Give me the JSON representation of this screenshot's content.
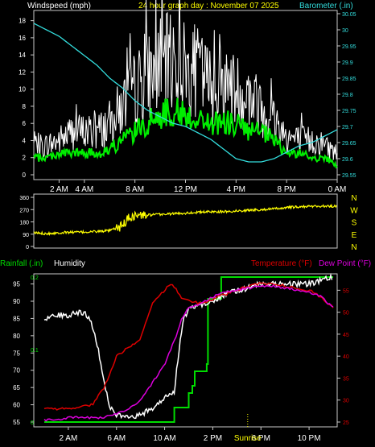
{
  "header": {
    "left_label": "Windspeed (mph)",
    "title": "24 hour graph day : November 07 2025",
    "right_label": "Barometer (.in)"
  },
  "colors": {
    "background": "#000000",
    "frame": "#c8c8c8",
    "title": "#ffff00",
    "label": "#ffffff",
    "baro": "#33dddd",
    "wind_gust": "#ffffff",
    "wind_avg": "#00ee00",
    "wind_dir": "#ffff00",
    "rain": "#00dd00",
    "humidity": "#ffffff",
    "temperature": "#dd0000",
    "dew_point": "#dd00dd",
    "sunrise": "#ffff00"
  },
  "legend": {
    "rainfall": "Rainfall (.in)",
    "humidity": "Humidity",
    "temperature": "Temperature (°F)",
    "dew_point": "Dew Point (°F)"
  },
  "chart_data": [
    {
      "type": "line",
      "title": "24 hour graph day : November 07 2025",
      "ylabel": "Windspeed (mph)",
      "y2label": "Barometer (.in)",
      "xlim": [
        0,
        24
      ],
      "ylim": [
        0,
        19
      ],
      "y2lim": [
        29.55,
        30.05
      ],
      "x_ticks": [
        2,
        4,
        8,
        12,
        16,
        20,
        24
      ],
      "x_tick_labels": [
        "2 AM",
        "4 AM",
        "8 AM",
        "12 PM",
        "4 PM",
        "8 PM",
        "0 AM"
      ],
      "y_ticks": [
        0,
        2,
        4,
        6,
        8,
        10,
        12,
        14,
        16,
        18
      ],
      "y2_ticks": [
        29.55,
        29.6,
        29.65,
        29.7,
        29.75,
        29.8,
        29.85,
        29.9,
        29.95,
        30,
        30.05
      ],
      "y2_tick_labels": [
        "29.55",
        "29.6",
        "29.65",
        "29.7",
        "29.75",
        "29.8",
        "29.85",
        "29.9",
        "29.95",
        "30",
        "30.05"
      ],
      "series": [
        {
          "name": "gust",
          "axis": "left",
          "x": [
            0,
            1,
            2,
            3,
            4,
            5,
            6,
            7,
            8,
            9,
            10,
            11,
            12,
            13,
            14,
            15,
            16,
            17,
            18,
            19,
            20,
            21,
            22,
            23,
            24
          ],
          "y": [
            3.4,
            3.4,
            4,
            5,
            5,
            5,
            6,
            8,
            10,
            11.5,
            12.5,
            13.5,
            12.5,
            12,
            10.5,
            10.5,
            10,
            9,
            8,
            6.5,
            4.5,
            4,
            4,
            3.5,
            2.5
          ]
        },
        {
          "name": "average",
          "axis": "left",
          "x": [
            0,
            1,
            2,
            3,
            4,
            5,
            6,
            7,
            8,
            9,
            10,
            11,
            12,
            13,
            14,
            15,
            16,
            17,
            18,
            19,
            20,
            21,
            22,
            23,
            24
          ],
          "y": [
            2,
            2,
            2.5,
            2.5,
            2.5,
            2.5,
            3,
            4,
            5,
            6,
            7,
            7.5,
            7,
            6.5,
            6,
            6,
            6,
            5,
            5,
            4,
            2.5,
            2.5,
            2,
            2,
            1
          ]
        },
        {
          "name": "barometer",
          "axis": "right",
          "x": [
            0,
            1,
            2,
            3,
            4,
            5,
            6,
            7,
            8,
            9,
            10,
            11,
            12,
            13,
            14,
            15,
            16,
            17,
            18,
            19,
            20,
            21,
            22,
            23,
            24
          ],
          "y": [
            30.02,
            30,
            29.98,
            29.95,
            29.92,
            29.89,
            29.85,
            29.82,
            29.78,
            29.75,
            29.73,
            29.71,
            29.7,
            29.68,
            29.66,
            29.63,
            29.6,
            29.59,
            29.59,
            29.6,
            29.62,
            29.64,
            29.65,
            29.67,
            29.69
          ]
        }
      ]
    },
    {
      "type": "line",
      "xlim": [
        0,
        24
      ],
      "ylim": [
        0,
        360
      ],
      "y_ticks": [
        0,
        90,
        180,
        270,
        360
      ],
      "y_tick_labels": [
        "0",
        "90",
        "180",
        "270",
        "360"
      ],
      "direction_labels": [
        "N",
        "W",
        "S",
        "E",
        "N"
      ],
      "series": [
        {
          "name": "wind direction",
          "x": [
            0,
            1,
            2,
            3,
            4,
            5,
            6,
            7,
            7.5,
            8,
            9,
            10,
            11,
            12,
            13,
            14,
            15,
            16,
            17,
            18,
            19,
            20,
            21,
            22,
            23,
            24
          ],
          "y": [
            100,
            95,
            100,
            105,
            105,
            110,
            115,
            150,
            210,
            225,
            230,
            235,
            240,
            245,
            250,
            255,
            255,
            260,
            265,
            270,
            275,
            285,
            290,
            295,
            295,
            295
          ]
        }
      ]
    },
    {
      "type": "line",
      "xlim": [
        0,
        24
      ],
      "ylim": [
        55,
        97
      ],
      "y_ticks": [
        55,
        60,
        65,
        70,
        75,
        80,
        85,
        90,
        95
      ],
      "y2lim": [
        25,
        58
      ],
      "y2_ticks": [
        25,
        30,
        35,
        40,
        45,
        50,
        55
      ],
      "rain_ticks": [
        0,
        0.1,
        0.2
      ],
      "x_ticks": [
        2,
        6,
        10,
        14,
        18,
        22
      ],
      "x_tick_labels": [
        "2 AM",
        "6 AM",
        "10 AM",
        "2 PM",
        "6 PM",
        "10 PM"
      ],
      "sunrise_label": "Sunrise",
      "series": [
        {
          "name": "Rainfall (.in)",
          "axis": "rain",
          "x": [
            0,
            10.7,
            10.8,
            11.9,
            12,
            12.3,
            12.5,
            13.5,
            13.6,
            14.6,
            14.7,
            16,
            24
          ],
          "y": [
            0,
            0,
            0.02,
            0.02,
            0.04,
            0.05,
            0.07,
            0.08,
            0.17,
            0.17,
            0.2,
            0.2,
            0.2
          ]
        },
        {
          "name": "Humidity",
          "axis": "left",
          "x": [
            0,
            1,
            2,
            3,
            3.5,
            4,
            4.5,
            5,
            5.5,
            6,
            7,
            8,
            9,
            10,
            10.8,
            11,
            11.5,
            12,
            13,
            14,
            15,
            16,
            17,
            18,
            19,
            20,
            21,
            22,
            23,
            24
          ],
          "y": [
            85,
            86,
            86,
            87,
            86,
            83,
            76,
            66,
            59,
            57,
            56,
            57,
            59,
            62,
            64,
            70,
            84,
            88,
            89,
            90,
            92,
            93,
            94,
            95,
            95,
            95,
            95,
            95,
            96,
            97
          ]
        },
        {
          "name": "Temperature (°F)",
          "axis": "right",
          "x": [
            0,
            1,
            2,
            3,
            4,
            5,
            6,
            7,
            8,
            9,
            10,
            10.5,
            11,
            11.5,
            12,
            13,
            14,
            15,
            16,
            17,
            18,
            19,
            20,
            21,
            22,
            23,
            24
          ],
          "y": [
            28,
            28,
            28,
            28.5,
            29,
            33,
            40,
            42,
            44,
            52,
            55,
            56.5,
            55,
            53,
            52.5,
            52,
            53,
            54,
            55,
            56,
            56.5,
            56.5,
            56,
            55.5,
            55,
            53.5,
            51
          ]
        },
        {
          "name": "Dew Point (°F)",
          "axis": "right",
          "x": [
            0,
            1,
            2,
            3,
            4,
            5,
            6,
            7,
            8,
            9,
            10,
            11,
            11.5,
            12,
            13,
            14,
            15,
            16,
            17,
            18,
            19,
            20,
            21,
            22,
            23,
            24
          ],
          "y": [
            25.5,
            25.5,
            26,
            26,
            26,
            26,
            27,
            28,
            30,
            34,
            38,
            45,
            49,
            51,
            52,
            53.5,
            54.5,
            55,
            55.5,
            56,
            56,
            55.5,
            55,
            54.5,
            53.5,
            51
          ]
        }
      ],
      "sunrise_x": 16.9
    }
  ]
}
